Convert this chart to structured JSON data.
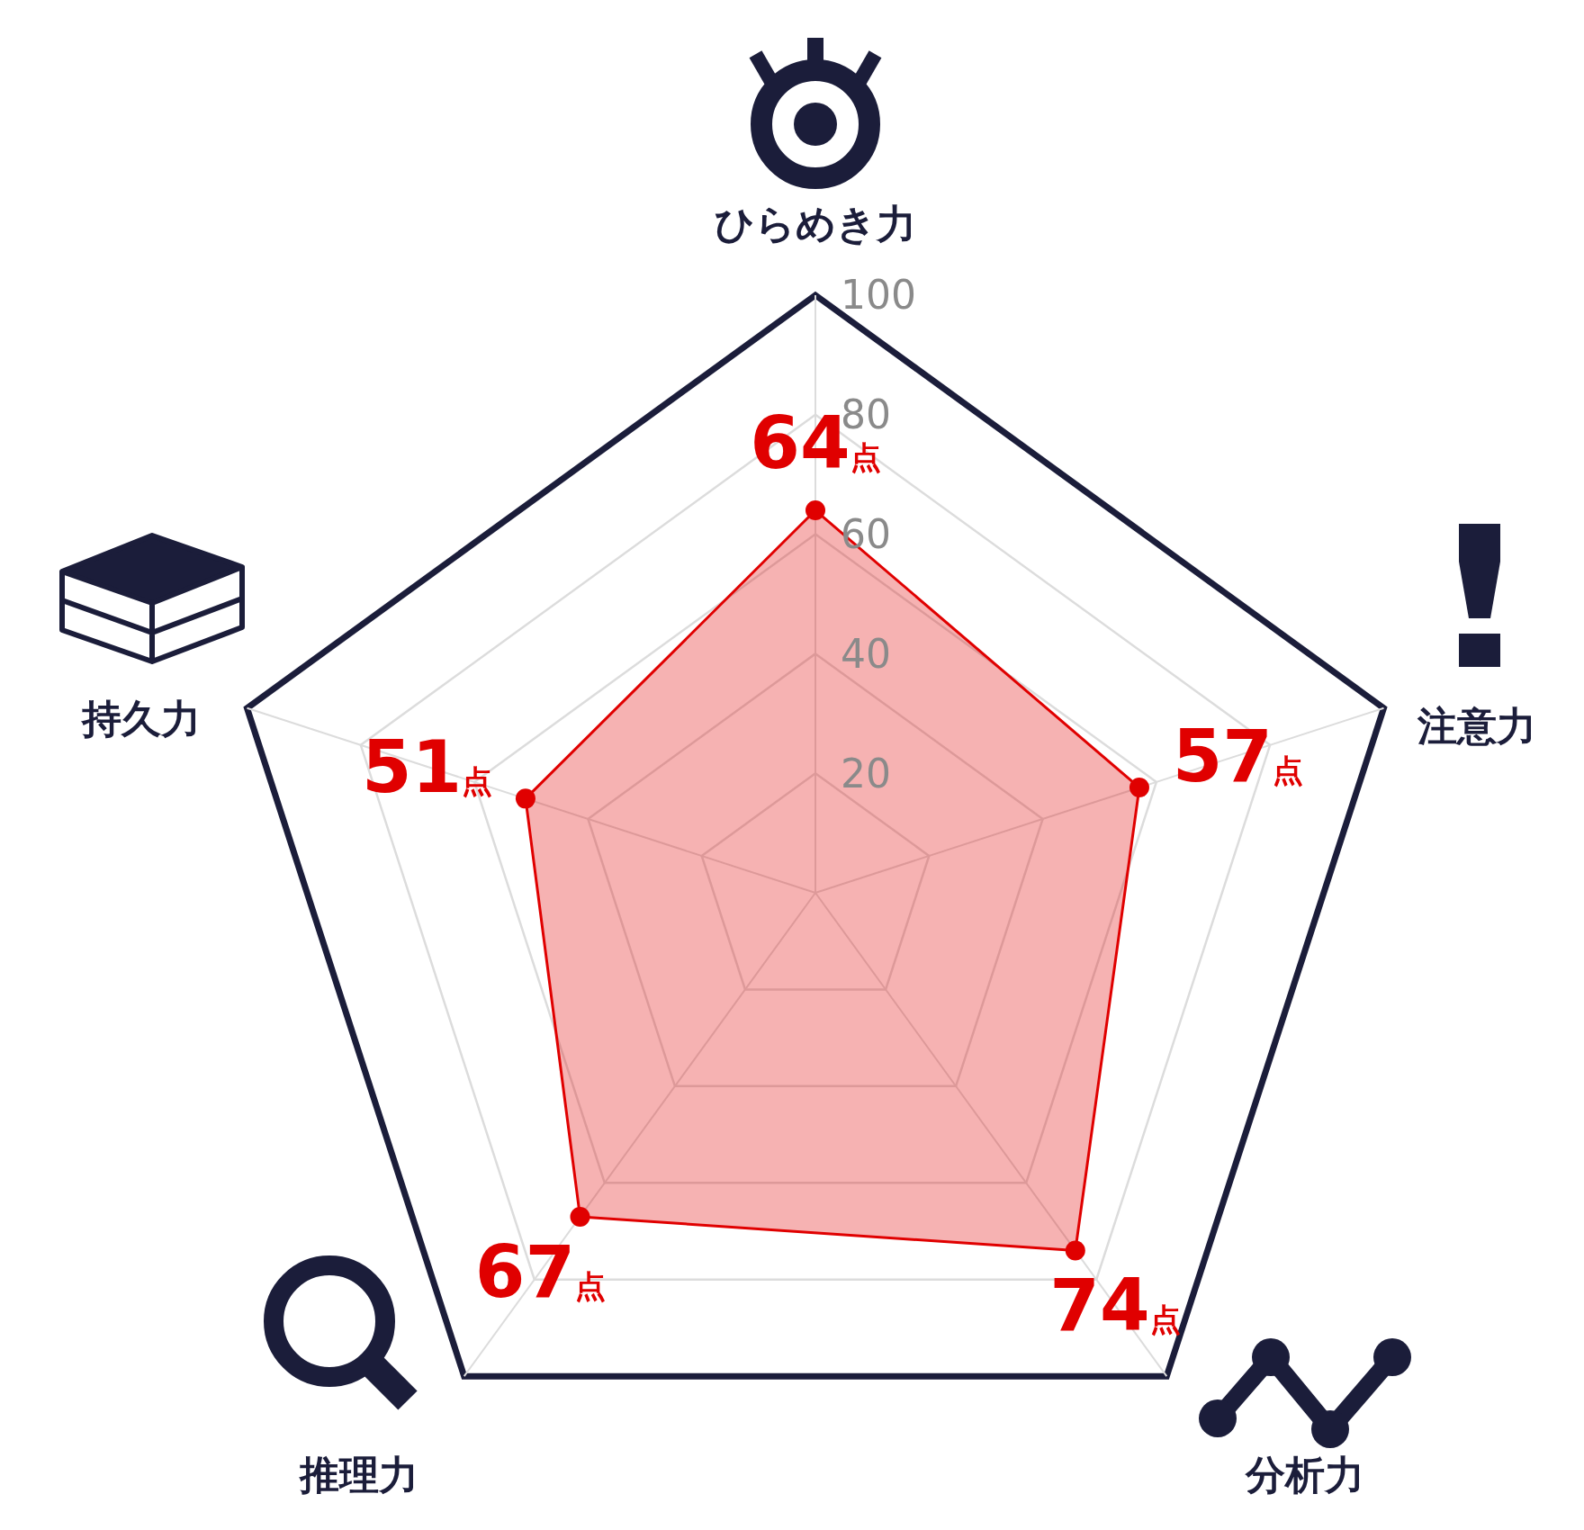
{
  "chart_data": {
    "type": "radar",
    "categories": [
      "ひらめき力",
      "注意力",
      "分析力",
      "推理力",
      "持久力"
    ],
    "series": [
      {
        "color": "#e00000",
        "values": [
          64,
          57,
          74,
          67,
          51
        ],
        "value_labels": [
          "64点",
          "57点",
          "74点",
          "67点",
          "51点"
        ]
      }
    ],
    "ylim": [
      0,
      100
    ],
    "yticks": [
      20,
      40,
      60,
      80,
      100
    ],
    "grid": true,
    "marker": "circle"
  }
}
